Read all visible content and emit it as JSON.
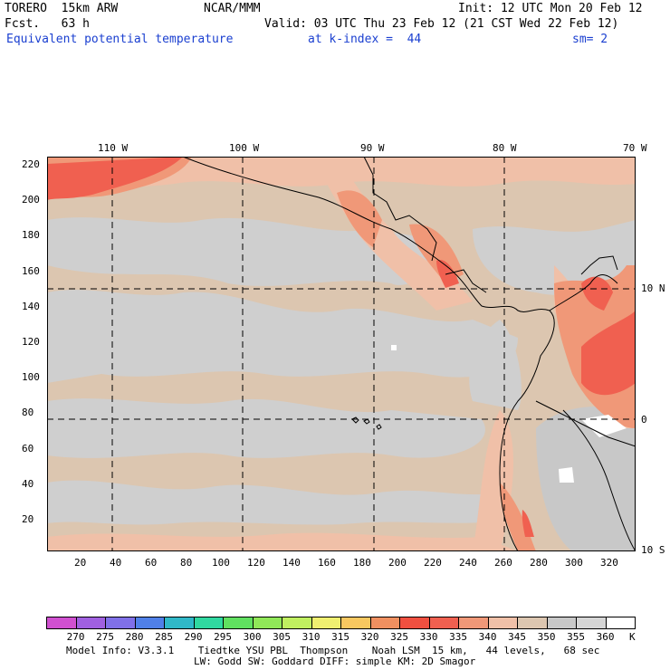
{
  "header": {
    "model": "TORERO  15km ARW",
    "center": "NCAR/MMM",
    "init": "Init: 12 UTC Mon 20 Feb 12",
    "fcst": "Fcst.   63 h",
    "valid": "Valid: 03 UTC Thu 23 Feb 12 (21 CST Wed 22 Feb 12)",
    "field": "Equivalent potential temperature",
    "level": "at k-index =  44",
    "smooth": "sm= 2"
  },
  "map": {
    "top_labels": [
      "110 W",
      "100 W",
      "90 W",
      "80 W",
      "70 W"
    ],
    "right_labels": [
      "10 N",
      "0",
      "10 S"
    ],
    "y_ticks": [
      "220",
      "200",
      "180",
      "160",
      "140",
      "120",
      "100",
      "80",
      "60",
      "40",
      "20"
    ],
    "x_ticks": [
      "20",
      "40",
      "60",
      "80",
      "100",
      "120",
      "140",
      "160",
      "180",
      "200",
      "220",
      "240",
      "260",
      "280",
      "300",
      "320"
    ]
  },
  "colorbar": {
    "colors": [
      "#d050d0",
      "#a060e0",
      "#8070e8",
      "#5080e8",
      "#30b8c8",
      "#30d8a0",
      "#60e060",
      "#90e858",
      "#c0f060",
      "#f0f070",
      "#f8c860",
      "#f09060",
      "#f05040",
      "#f06050",
      "#f09878",
      "#f0c0a8",
      "#dcc6b0",
      "#c8c8c8",
      "#d6d6d6",
      "#ffffff"
    ],
    "labels": [
      "270",
      "275",
      "280",
      "285",
      "290",
      "295",
      "300",
      "305",
      "310",
      "315",
      "320",
      "325",
      "330",
      "335",
      "340",
      "345",
      "350",
      "355",
      "360",
      "K"
    ]
  },
  "footer": {
    "line1": "Model Info: V3.3.1    Tiedtke YSU PBL  Thompson    Noah LSM  15 km,   44 levels,   68 sec",
    "line2": "LW: Godd SW: Goddard DIFF: simple KM: 2D Smagor"
  },
  "palette": {
    "bg": "#dcc6b0",
    "grey": "#cfcfcf",
    "light": "#f0c0a8",
    "salmon": "#f09878",
    "red": "#f06050",
    "white": "#ffffff"
  }
}
